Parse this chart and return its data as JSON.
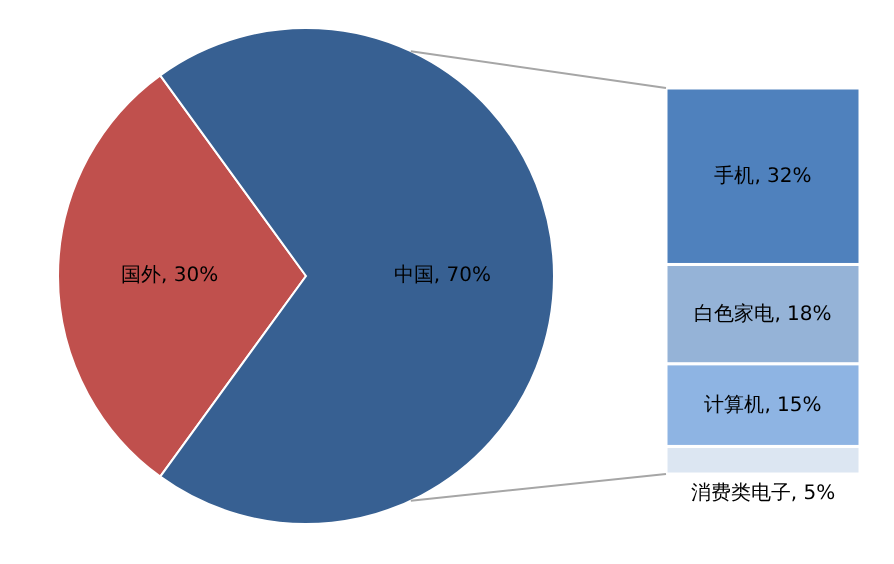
{
  "chart_data": [
    {
      "type": "pie",
      "categories": [
        "国外",
        "中国"
      ],
      "values": [
        30,
        70
      ],
      "colors": [
        "#c0504d",
        "#376092"
      ],
      "value_labels": [
        "30%",
        "70%"
      ]
    },
    {
      "type": "bar",
      "stacked": true,
      "categories": [
        null
      ],
      "series": [
        {
          "color": "#dce6f2",
          "values": [
            5
          ],
          "value_labels": [
            "消费类电子, 5%"
          ]
        },
        {
          "color": "#8eb4e3",
          "values": [
            15
          ],
          "value_labels": [
            "计算机, 15%"
          ]
        },
        {
          "color": "#95b3d7",
          "values": [
            18
          ],
          "value_labels": [
            "白色家电, 18%"
          ]
        },
        {
          "color": "#4f81bd",
          "values": [
            32
          ],
          "value_labels": [
            "手机, 32%"
          ]
        }
      ]
    }
  ]
}
